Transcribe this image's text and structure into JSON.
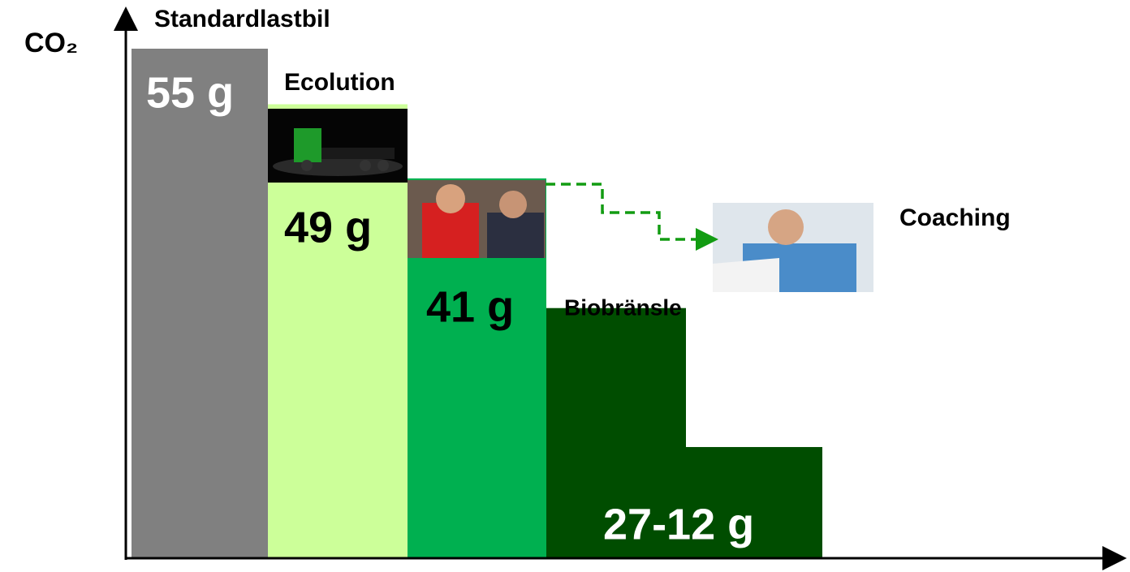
{
  "chart_data": {
    "type": "bar",
    "y_label": "CO₂",
    "categories": [
      "Standardlastbil",
      "Ecolution",
      "Coaching",
      "Biobränsle",
      null
    ],
    "values": [
      55,
      49,
      41,
      27,
      12
    ],
    "value_labels": [
      "55 g",
      "49 g",
      "41 g",
      "27-12 g",
      null
    ],
    "colors": [
      "#808080",
      "#ccff99",
      "#00b050",
      "#004d00",
      "#004d00"
    ],
    "ylim": [
      0,
      55
    ]
  }
}
